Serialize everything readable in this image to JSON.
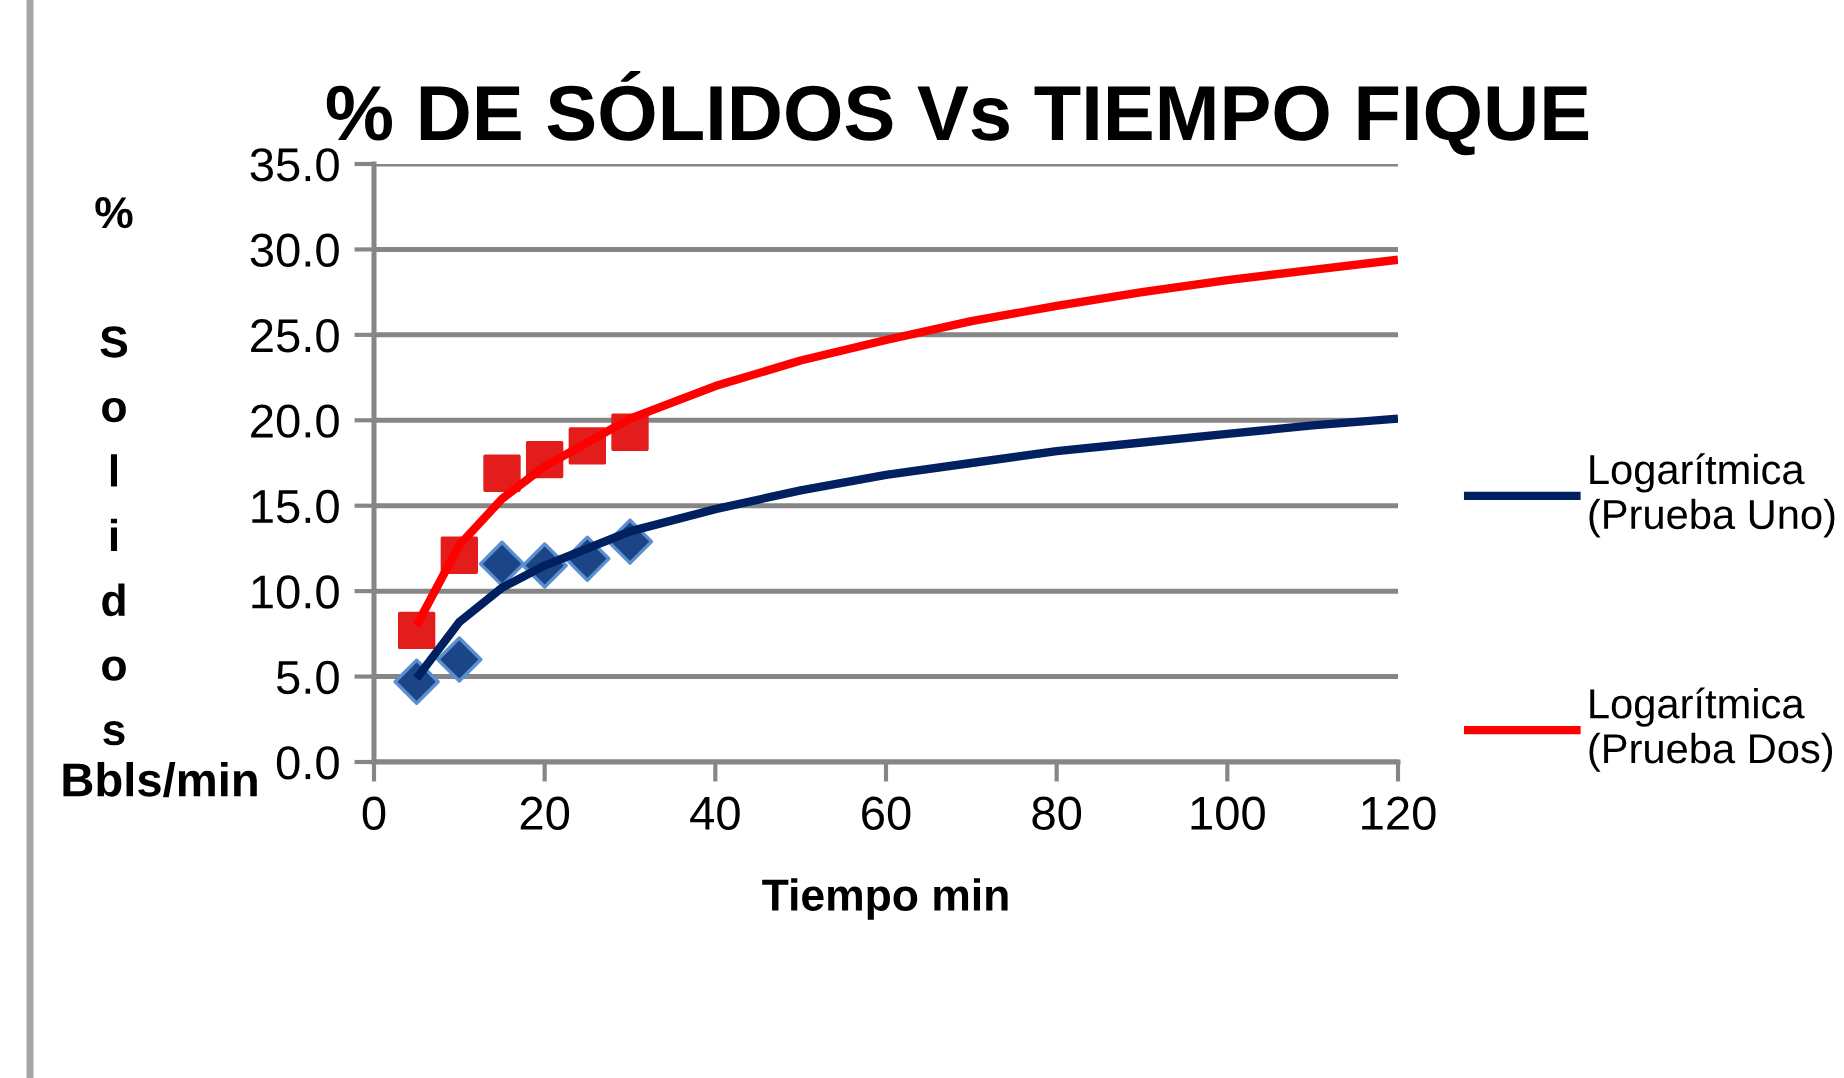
{
  "chart_data": {
    "type": "scatter",
    "title": "% DE SÓLIDOS Vs TIEMPO FIQUE",
    "xlabel": "Tiempo min",
    "ylabel": "% Solidos",
    "annotations": [
      "Bbls/min"
    ],
    "xlim": [
      0,
      120
    ],
    "xticks": [
      0,
      20,
      40,
      60,
      80,
      100,
      120
    ],
    "ylim": [
      0,
      35
    ],
    "yticks": [
      {
        "value": 0,
        "label": "0.0"
      },
      {
        "value": 5,
        "label": "5.0"
      },
      {
        "value": 10,
        "label": "10.0"
      },
      {
        "value": 15,
        "label": "15.0"
      },
      {
        "value": 20,
        "label": "20.0"
      },
      {
        "value": 25,
        "label": "25.0"
      },
      {
        "value": 30,
        "label": "30.0"
      },
      {
        "value": 35,
        "label": "35.0"
      }
    ],
    "grid": "y",
    "legend": "right",
    "series": [
      {
        "marker": "diamond",
        "color": "#1c4587",
        "x": [
          5,
          10,
          15,
          20,
          25,
          30
        ],
        "values": [
          4.7,
          6.0,
          11.6,
          11.5,
          11.9,
          12.9
        ]
      },
      {
        "marker": "square",
        "color": "#e31c1c",
        "x": [
          5,
          10,
          15,
          20,
          25,
          30
        ],
        "values": [
          7.7,
          12.1,
          16.9,
          17.7,
          18.5,
          19.3
        ]
      },
      {
        "type": "line",
        "name": "Logarítmica (Prueba Uno)",
        "color": "#002060",
        "marker": "none",
        "line_style": "solid",
        "x": [
          5,
          10,
          15,
          20,
          30,
          40,
          50,
          60,
          70,
          80,
          90,
          100,
          110,
          120
        ],
        "values": [
          4.9,
          8.2,
          10.2,
          11.5,
          13.5,
          14.8,
          15.9,
          16.8,
          17.5,
          18.2,
          18.7,
          19.2,
          19.7,
          20.1
        ]
      },
      {
        "type": "line",
        "name": "Logarítmica (Prueba Dos)",
        "color": "#ff0000",
        "marker": "none",
        "line_style": "solid",
        "x": [
          5,
          10,
          15,
          20,
          30,
          40,
          50,
          60,
          70,
          80,
          90,
          100,
          110,
          120
        ],
        "values": [
          8.0,
          12.7,
          15.4,
          17.3,
          20.1,
          22.0,
          23.5,
          24.7,
          25.8,
          26.7,
          27.5,
          28.2,
          28.8,
          29.4
        ]
      }
    ]
  }
}
